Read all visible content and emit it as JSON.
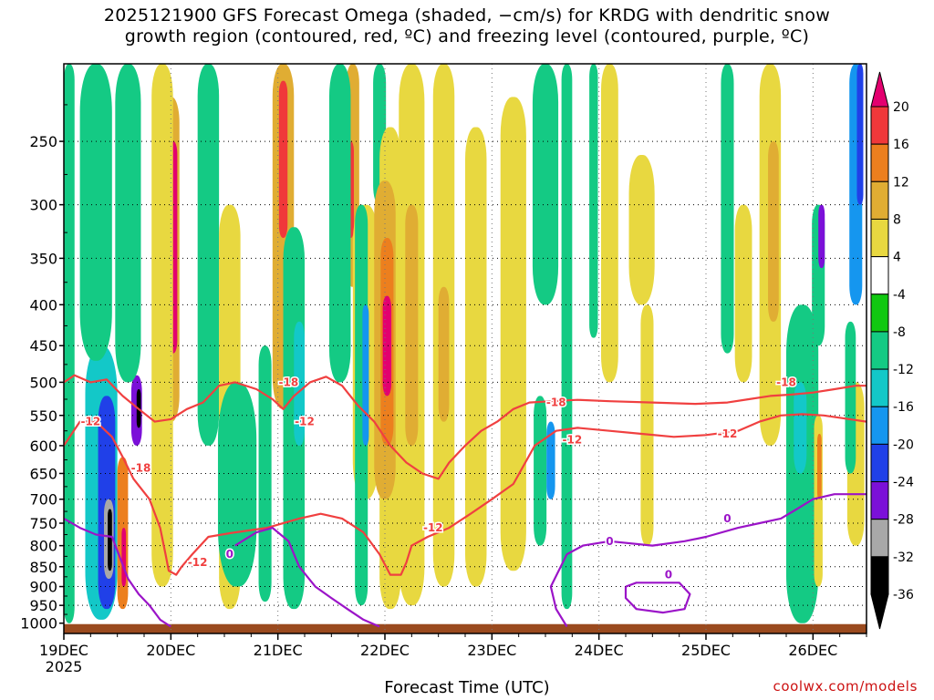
{
  "title": {
    "line1": "2025121900 GFS Forecast Omega (shaded, −cm/s) for KRDG with dendritic snow",
    "line2": "growth region (contoured, red, ºC) and freezing level (contoured, purple, ºC)"
  },
  "xlabel": "Forecast Time (UTC)",
  "credit": "coolwx.com/models",
  "chart_data": {
    "type": "heatmap",
    "x": [
      "19DEC",
      "20DEC",
      "21DEC",
      "22DEC",
      "23DEC",
      "24DEC",
      "25DEC",
      "26DEC"
    ],
    "x_sub": "2025",
    "xlim_days": [
      0,
      7.5
    ],
    "y": [
      250,
      300,
      350,
      400,
      450,
      500,
      550,
      600,
      650,
      700,
      750,
      800,
      850,
      900,
      950,
      1000
    ],
    "ylim": [
      1030,
      200
    ],
    "y_log_pressure": true,
    "grid": true,
    "colorbar": {
      "levels": [
        20,
        16,
        12,
        8,
        4,
        -4,
        -8,
        -12,
        -16,
        -20,
        -24,
        -28,
        -32,
        -36
      ],
      "colors": [
        "#e3006f",
        "#f0383a",
        "#ec7f1e",
        "#e0ad33",
        "#e8d840",
        "#ffffff",
        "#11c811",
        "#14ca84",
        "#13c8c8",
        "#1596ef",
        "#2040e8",
        "#7b10d8",
        "#a8a8a8",
        "#000000"
      ]
    },
    "omega_bands": [
      {
        "day": 0.05,
        "wp": 0.05,
        "top": 200,
        "bot": 1000,
        "v": -8
      },
      {
        "day": 0.35,
        "wp": 0.15,
        "top": 450,
        "bot": 990,
        "v": -12
      },
      {
        "day": 0.4,
        "wp": 0.08,
        "top": 520,
        "bot": 960,
        "v": -20
      },
      {
        "day": 0.42,
        "wp": 0.045,
        "top": 700,
        "bot": 880,
        "v": -28
      },
      {
        "day": 0.43,
        "wp": 0.02,
        "top": 720,
        "bot": 860,
        "v": -36
      },
      {
        "day": 0.55,
        "wp": 0.05,
        "top": 620,
        "bot": 960,
        "v": 12
      },
      {
        "day": 0.56,
        "wp": 0.02,
        "top": 760,
        "bot": 900,
        "v": 20
      },
      {
        "day": 0.68,
        "wp": 0.05,
        "top": 490,
        "bot": 600,
        "v": -24
      },
      {
        "day": 0.7,
        "wp": 0.02,
        "top": 510,
        "bot": 570,
        "v": -36
      },
      {
        "day": 0.3,
        "wp": 0.15,
        "top": 200,
        "bot": 470,
        "v": -8
      },
      {
        "day": 0.6,
        "wp": 0.12,
        "top": 200,
        "bot": 500,
        "v": -8
      },
      {
        "day": 1.0,
        "wp": 0.08,
        "top": 220,
        "bot": 560,
        "v": 8
      },
      {
        "day": 1.02,
        "wp": 0.04,
        "top": 250,
        "bot": 460,
        "v": 20
      },
      {
        "day": 0.92,
        "wp": 0.1,
        "top": 200,
        "bot": 900,
        "v": 4
      },
      {
        "day": 1.35,
        "wp": 0.1,
        "top": 200,
        "bot": 600,
        "v": -8
      },
      {
        "day": 1.55,
        "wp": 0.1,
        "top": 300,
        "bot": 960,
        "v": 4
      },
      {
        "day": 1.62,
        "wp": 0.18,
        "top": 500,
        "bot": 900,
        "v": -8
      },
      {
        "day": 2.05,
        "wp": 0.1,
        "top": 200,
        "bot": 540,
        "v": 8
      },
      {
        "day": 2.05,
        "wp": 0.04,
        "top": 210,
        "bot": 330,
        "v": 16
      },
      {
        "day": 2.15,
        "wp": 0.1,
        "top": 320,
        "bot": 960,
        "v": -8
      },
      {
        "day": 2.2,
        "wp": 0.05,
        "top": 420,
        "bot": 600,
        "v": -12
      },
      {
        "day": 1.88,
        "wp": 0.06,
        "top": 450,
        "bot": 940,
        "v": -8
      },
      {
        "day": 2.7,
        "wp": 0.06,
        "top": 200,
        "bot": 380,
        "v": 8
      },
      {
        "day": 2.68,
        "wp": 0.03,
        "top": 250,
        "bot": 330,
        "v": 16
      },
      {
        "day": 2.58,
        "wp": 0.1,
        "top": 200,
        "bot": 500,
        "v": -8
      },
      {
        "day": 2.95,
        "wp": 0.06,
        "top": 200,
        "bot": 300,
        "v": -8
      },
      {
        "day": 2.82,
        "wp": 0.12,
        "top": 300,
        "bot": 700,
        "v": 4
      },
      {
        "day": 3.05,
        "wp": 0.1,
        "top": 240,
        "bot": 960,
        "v": 4
      },
      {
        "day": 3.0,
        "wp": 0.1,
        "top": 280,
        "bot": 700,
        "v": 8
      },
      {
        "day": 3.02,
        "wp": 0.06,
        "top": 330,
        "bot": 600,
        "v": 12
      },
      {
        "day": 3.02,
        "wp": 0.04,
        "top": 390,
        "bot": 520,
        "v": 20
      },
      {
        "day": 2.78,
        "wp": 0.06,
        "top": 300,
        "bot": 950,
        "v": -8
      },
      {
        "day": 2.82,
        "wp": 0.03,
        "top": 400,
        "bot": 600,
        "v": -16
      },
      {
        "day": 3.25,
        "wp": 0.12,
        "top": 200,
        "bot": 950,
        "v": 4
      },
      {
        "day": 3.25,
        "wp": 0.06,
        "top": 300,
        "bot": 600,
        "v": 8
      },
      {
        "day": 3.55,
        "wp": 0.1,
        "top": 200,
        "bot": 900,
        "v": 4
      },
      {
        "day": 3.55,
        "wp": 0.05,
        "top": 380,
        "bot": 560,
        "v": 8
      },
      {
        "day": 3.85,
        "wp": 0.1,
        "top": 240,
        "bot": 900,
        "v": 4
      },
      {
        "day": 4.2,
        "wp": 0.12,
        "top": 220,
        "bot": 860,
        "v": 4
      },
      {
        "day": 4.5,
        "wp": 0.12,
        "top": 200,
        "bot": 400,
        "v": -8
      },
      {
        "day": 4.45,
        "wp": 0.06,
        "top": 520,
        "bot": 800,
        "v": -8
      },
      {
        "day": 4.55,
        "wp": 0.04,
        "top": 560,
        "bot": 700,
        "v": -16
      },
      {
        "day": 4.7,
        "wp": 0.05,
        "top": 200,
        "bot": 960,
        "v": -8
      },
      {
        "day": 4.95,
        "wp": 0.04,
        "top": 200,
        "bot": 440,
        "v": -8
      },
      {
        "day": 5.1,
        "wp": 0.08,
        "top": 200,
        "bot": 500,
        "v": 4
      },
      {
        "day": 5.4,
        "wp": 0.12,
        "top": 260,
        "bot": 400,
        "v": 4
      },
      {
        "day": 5.45,
        "wp": 0.06,
        "top": 400,
        "bot": 800,
        "v": 4
      },
      {
        "day": 6.2,
        "wp": 0.06,
        "top": 200,
        "bot": 460,
        "v": -8
      },
      {
        "day": 6.35,
        "wp": 0.08,
        "top": 300,
        "bot": 500,
        "v": 4
      },
      {
        "day": 6.6,
        "wp": 0.1,
        "top": 200,
        "bot": 600,
        "v": 4
      },
      {
        "day": 6.63,
        "wp": 0.05,
        "top": 250,
        "bot": 420,
        "v": 8
      },
      {
        "day": 6.9,
        "wp": 0.15,
        "top": 400,
        "bot": 1000,
        "v": -8
      },
      {
        "day": 6.88,
        "wp": 0.06,
        "top": 500,
        "bot": 650,
        "v": -12
      },
      {
        "day": 7.05,
        "wp": 0.06,
        "top": 300,
        "bot": 450,
        "v": -8
      },
      {
        "day": 7.08,
        "wp": 0.03,
        "top": 300,
        "bot": 360,
        "v": -24
      },
      {
        "day": 7.05,
        "wp": 0.04,
        "top": 550,
        "bot": 900,
        "v": 4
      },
      {
        "day": 7.06,
        "wp": 0.02,
        "top": 580,
        "bot": 700,
        "v": 12
      },
      {
        "day": 7.4,
        "wp": 0.06,
        "top": 200,
        "bot": 400,
        "v": -16
      },
      {
        "day": 7.44,
        "wp": 0.03,
        "top": 200,
        "bot": 300,
        "v": -20
      },
      {
        "day": 7.4,
        "wp": 0.08,
        "top": 500,
        "bot": 800,
        "v": 4
      },
      {
        "day": 7.35,
        "wp": 0.05,
        "top": 420,
        "bot": 650,
        "v": -8
      }
    ],
    "contours": [
      {
        "color": "#f04040",
        "points": [
          [
            0,
            500
          ],
          [
            0.1,
            490
          ],
          [
            0.25,
            500
          ],
          [
            0.4,
            496
          ],
          [
            0.55,
            520
          ],
          [
            0.7,
            540
          ],
          [
            0.85,
            560
          ],
          [
            1.0,
            556
          ],
          [
            1.15,
            540
          ],
          [
            1.3,
            530
          ],
          [
            1.45,
            505
          ],
          [
            1.6,
            500
          ],
          [
            1.8,
            510
          ],
          [
            1.95,
            525
          ],
          [
            2.05,
            540
          ],
          [
            2.15,
            520
          ],
          [
            2.3,
            500
          ],
          [
            2.45,
            492
          ],
          [
            2.6,
            505
          ],
          [
            2.75,
            535
          ],
          [
            2.9,
            560
          ],
          [
            3.05,
            600
          ],
          [
            3.2,
            630
          ],
          [
            3.35,
            650
          ],
          [
            3.5,
            660
          ],
          [
            3.6,
            630
          ],
          [
            3.75,
            600
          ],
          [
            3.9,
            575
          ],
          [
            4.05,
            560
          ],
          [
            4.2,
            540
          ],
          [
            4.35,
            530
          ],
          [
            4.55,
            528
          ],
          [
            4.8,
            526
          ],
          [
            5.1,
            528
          ],
          [
            5.5,
            530
          ],
          [
            5.9,
            532
          ],
          [
            6.2,
            530
          ],
          [
            6.4,
            525
          ],
          [
            6.6,
            520
          ],
          [
            6.8,
            518
          ],
          [
            7.0,
            515
          ],
          [
            7.2,
            510
          ],
          [
            7.4,
            505
          ],
          [
            7.5,
            505
          ]
        ]
      },
      {
        "color": "#f04040",
        "points": [
          [
            0,
            600
          ],
          [
            0.15,
            560
          ],
          [
            0.3,
            560
          ],
          [
            0.45,
            585
          ],
          [
            0.55,
            620
          ],
          [
            0.65,
            660
          ],
          [
            0.8,
            700
          ],
          [
            0.9,
            760
          ],
          [
            0.95,
            820
          ],
          [
            0.98,
            860
          ],
          [
            1.05,
            870
          ],
          [
            1.1,
            850
          ],
          [
            1.2,
            820
          ],
          [
            1.35,
            780
          ],
          [
            1.6,
            770
          ],
          [
            1.9,
            760
          ],
          [
            2.2,
            740
          ],
          [
            2.4,
            730
          ],
          [
            2.6,
            740
          ],
          [
            2.8,
            770
          ],
          [
            2.95,
            820
          ],
          [
            3.05,
            870
          ],
          [
            3.15,
            870
          ],
          [
            3.2,
            840
          ],
          [
            3.25,
            800
          ],
          [
            3.4,
            780
          ],
          [
            3.6,
            760
          ],
          [
            3.8,
            730
          ],
          [
            4.0,
            700
          ],
          [
            4.2,
            670
          ],
          [
            4.4,
            600
          ],
          [
            4.6,
            575
          ],
          [
            4.8,
            570
          ],
          [
            5.1,
            575
          ],
          [
            5.4,
            580
          ],
          [
            5.7,
            585
          ],
          [
            6.0,
            582
          ],
          [
            6.3,
            575
          ],
          [
            6.5,
            560
          ],
          [
            6.7,
            550
          ],
          [
            6.9,
            548
          ],
          [
            7.1,
            550
          ],
          [
            7.3,
            555
          ],
          [
            7.5,
            560
          ]
        ]
      },
      {
        "color": "#9b14c8",
        "points": [
          [
            0,
            740
          ],
          [
            0.15,
            760
          ],
          [
            0.3,
            775
          ],
          [
            0.45,
            780
          ],
          [
            0.6,
            880
          ],
          [
            0.7,
            920
          ],
          [
            0.8,
            950
          ],
          [
            0.9,
            990
          ],
          [
            1.0,
            1010
          ]
        ]
      },
      {
        "color": "#9b14c8",
        "points": [
          [
            1.6,
            800
          ],
          [
            1.8,
            770
          ],
          [
            1.95,
            760
          ],
          [
            2.1,
            790
          ],
          [
            2.2,
            850
          ],
          [
            2.35,
            900
          ],
          [
            2.5,
            930
          ],
          [
            2.65,
            960
          ],
          [
            2.8,
            990
          ],
          [
            2.95,
            1010
          ]
        ]
      },
      {
        "color": "#9b14c8",
        "points": [
          [
            4.7,
            1010
          ],
          [
            4.6,
            960
          ],
          [
            4.55,
            900
          ],
          [
            4.7,
            820
          ],
          [
            4.85,
            800
          ],
          [
            5.1,
            790
          ],
          [
            5.5,
            800
          ],
          [
            5.8,
            790
          ],
          [
            6.0,
            780
          ],
          [
            6.3,
            760
          ],
          [
            6.5,
            750
          ],
          [
            6.7,
            740
          ],
          [
            6.85,
            720
          ],
          [
            7.0,
            700
          ],
          [
            7.2,
            690
          ],
          [
            7.5,
            690
          ]
        ]
      },
      {
        "color": "#9b14c8",
        "points": [
          [
            5.25,
            900
          ],
          [
            5.35,
            890
          ],
          [
            5.55,
            890
          ],
          [
            5.75,
            890
          ],
          [
            5.85,
            920
          ],
          [
            5.8,
            960
          ],
          [
            5.6,
            970
          ],
          [
            5.35,
            960
          ],
          [
            5.25,
            930
          ],
          [
            5.25,
            900
          ]
        ]
      }
    ],
    "contour_labels": [
      {
        "text": "-12",
        "day": 0.25,
        "p": 560,
        "color": "#f04040"
      },
      {
        "text": "-18",
        "day": 0.72,
        "p": 640,
        "color": "#f04040"
      },
      {
        "text": "-12",
        "day": 1.25,
        "p": 840,
        "color": "#f04040"
      },
      {
        "text": "-18",
        "day": 2.1,
        "p": 500,
        "color": "#f04040"
      },
      {
        "text": "-12",
        "day": 2.25,
        "p": 560,
        "color": "#f04040"
      },
      {
        "text": "-12",
        "day": 3.45,
        "p": 760,
        "color": "#f04040"
      },
      {
        "text": "-18",
        "day": 4.6,
        "p": 530,
        "color": "#f04040"
      },
      {
        "text": "-12",
        "day": 4.75,
        "p": 590,
        "color": "#f04040"
      },
      {
        "text": "-12",
        "day": 6.2,
        "p": 580,
        "color": "#f04040"
      },
      {
        "text": "-18",
        "day": 6.75,
        "p": 500,
        "color": "#f04040"
      },
      {
        "text": "0",
        "day": 1.55,
        "p": 820,
        "color": "#9b14c8"
      },
      {
        "text": "0",
        "day": 5.1,
        "p": 790,
        "color": "#9b14c8"
      },
      {
        "text": "0",
        "day": 6.2,
        "p": 740,
        "color": "#9b14c8"
      },
      {
        "text": "0",
        "day": 5.65,
        "p": 870,
        "color": "#9b14c8"
      }
    ],
    "ground": {
      "color": "#9a4a1e"
    }
  }
}
